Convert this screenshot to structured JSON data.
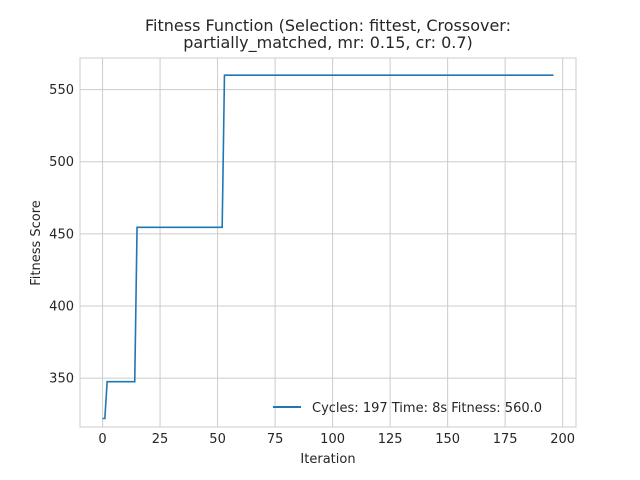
{
  "chart_data": {
    "type": "line",
    "title_lines": [
      "Fitness Function (Selection: fittest, Crossover:",
      "partially_matched, mr: 0.15, cr: 0.7)"
    ],
    "xlabel": "Iteration",
    "ylabel": "Fitness Score",
    "xlim": [
      -9.8,
      205.8
    ],
    "ylim": [
      316.1,
      571.9
    ],
    "xticks": [
      0,
      25,
      50,
      75,
      100,
      125,
      150,
      175,
      200
    ],
    "yticks": [
      350,
      400,
      450,
      500,
      550
    ],
    "grid": true,
    "legend_position": "lower-right",
    "series": [
      {
        "name": "Cycles: 197 Time: 8s Fitness: 560.0",
        "color": "#1f77b4",
        "x": [
          0,
          1,
          2,
          14,
          15,
          52,
          53,
          196
        ],
        "y": [
          322,
          322,
          347.5,
          347.5,
          454.5,
          454.5,
          560,
          560
        ]
      }
    ]
  }
}
